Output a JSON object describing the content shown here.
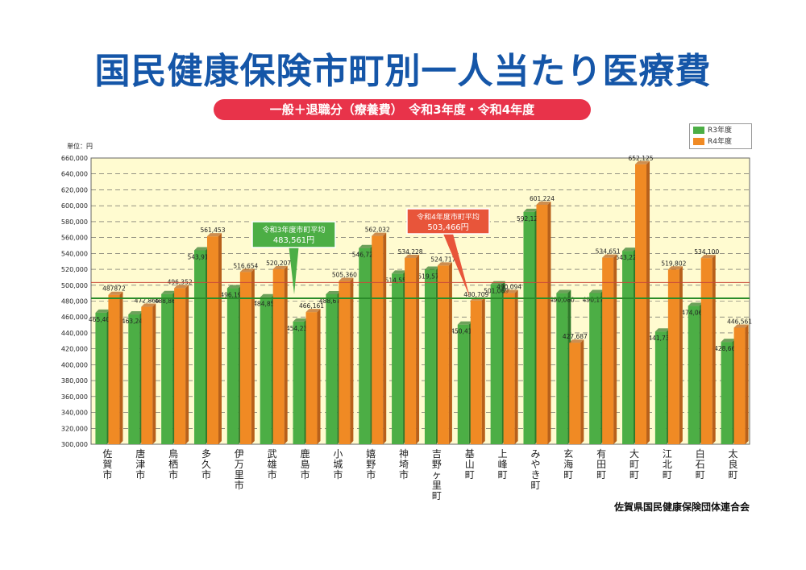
{
  "title": "国民健康保険市町別一人当たり医療費",
  "subtitle": "一般＋退職分（療養費）　令和3年度・令和4年度",
  "organization": "佐賀県国民健康保険団体連合会",
  "colors": {
    "r3": "#4cae45",
    "r4": "#f08a24",
    "plot_bg": "#fffbd0",
    "avg_r3_line": "#2a8c2a",
    "avg_r4_line": "#c94a3a",
    "title": "#1556a8",
    "subtitle_bg": "#e8334a"
  },
  "chart_data": {
    "type": "bar",
    "unit_label": "単位：円",
    "categories": [
      "佐賀市",
      "唐津市",
      "鳥栖市",
      "多久市",
      "伊万里市",
      "武雄市",
      "鹿島市",
      "小城市",
      "嬉野市",
      "神埼市",
      "吉野ヶ里町",
      "基山町",
      "上峰町",
      "みやき町",
      "玄海町",
      "有田町",
      "大町町",
      "江北町",
      "白石町",
      "太良町"
    ],
    "series": [
      {
        "name": "R3年度",
        "values": [
          465401,
          463244,
          488868,
          543918,
          496195,
          484854,
          454231,
          488673,
          546725,
          514551,
          519573,
          450417,
          501069,
          592121,
          490080,
          490179,
          543228,
          441731,
          474065,
          428664
        ],
        "labels": [
          "465,401",
          "463,244",
          "488,868",
          "543,918",
          "496,195",
          "484,854",
          "454,231",
          "488,673",
          "546,725",
          "514,551",
          "519,573",
          "450,417",
          "501,069",
          "592,121",
          "490,080",
          "490,179",
          "543,228",
          "441,731",
          "474,065",
          "428,664"
        ]
      },
      {
        "name": "R4年度",
        "values": [
          487872,
          472865,
          496352,
          561453,
          516654,
          520207,
          466161,
          505360,
          562032,
          534228,
          524717,
          480709,
          490094,
          601224,
          427687,
          534651,
          652125,
          519802,
          534100,
          446561
        ],
        "labels": [
          "487872",
          "472,865",
          "496,352",
          "561,453",
          "516,654",
          "520,207",
          "466,161",
          "505,360",
          "562,032",
          "534,228",
          "524,717",
          "480,709",
          "490,094",
          "601,224",
          "427,687",
          "534,651",
          "652,125",
          "519,802",
          "534,100",
          "446,561"
        ]
      }
    ],
    "ylim": [
      300000,
      660000
    ],
    "yticks": [
      "300,000",
      "320,000",
      "340,000",
      "360,000",
      "380,000",
      "400,000",
      "420,000",
      "440,000",
      "460,000",
      "480,000",
      "500,000",
      "520,000",
      "540,000",
      "560,000",
      "580,000",
      "600,000",
      "620,000",
      "640,000",
      "660,000"
    ],
    "averages": [
      {
        "label": "令和3年度市町平均",
        "value_label": "483,561円",
        "value": 483561
      },
      {
        "label": "令和4年度市町平均",
        "value_label": "503,466円",
        "value": 503466
      }
    ],
    "grid": "dashed horizontal at 20,000 intervals",
    "legend": "top-right"
  }
}
